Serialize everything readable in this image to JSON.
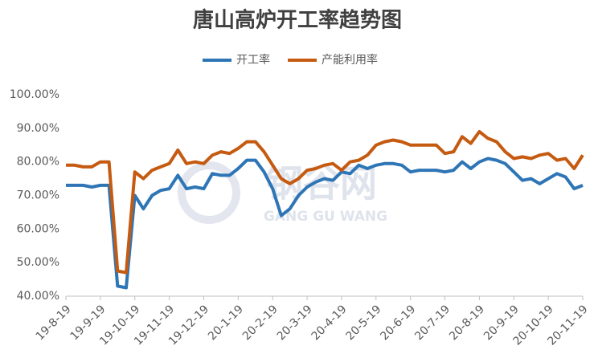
{
  "chart_data": {
    "type": "line",
    "title": "唐山高炉开工率趋势图",
    "watermark": {
      "text": "钢谷网",
      "subtext": "GANG GU WANG"
    },
    "categories": [
      "19-8-19",
      null,
      null,
      null,
      "19-9-19",
      null,
      null,
      null,
      "19-10-19",
      null,
      null,
      null,
      "19-11-19",
      null,
      null,
      null,
      "19-12-19",
      null,
      null,
      null,
      "20-1-19",
      null,
      null,
      null,
      "20-2-19",
      null,
      null,
      null,
      "20-3-19",
      null,
      null,
      null,
      "20-4-19",
      null,
      null,
      null,
      "20-5-19",
      null,
      null,
      null,
      "20-6-19",
      null,
      null,
      null,
      "20-7-19",
      null,
      null,
      null,
      "20-8-19",
      null,
      null,
      null,
      "20-9-19",
      null,
      null,
      null,
      "20-10-19",
      null,
      null,
      null,
      "20-11-19"
    ],
    "series": [
      {
        "name": "开工率",
        "color": "#2e75b6",
        "values": [
          73,
          73,
          73,
          72.5,
          73,
          73,
          43,
          42.5,
          70,
          66,
          70,
          71.5,
          72,
          76,
          72,
          72.5,
          72,
          76.5,
          76,
          76,
          78,
          80.5,
          80.5,
          77,
          72,
          64,
          66,
          70,
          72.5,
          74,
          75,
          74.5,
          77,
          76.5,
          79,
          78,
          79,
          79.5,
          79.5,
          79,
          77,
          77.5,
          77.5,
          77.5,
          77,
          77.5,
          80,
          78,
          80,
          81,
          80.5,
          79.5,
          77,
          74.5,
          75,
          73.5,
          75,
          76.5,
          75.5,
          72,
          73
        ]
      },
      {
        "name": "产能利用率",
        "color": "#c55a11",
        "values": [
          79,
          79,
          78.5,
          78.5,
          80,
          80,
          47.5,
          47,
          77,
          75,
          77.5,
          78.5,
          79.5,
          83.5,
          79.5,
          80,
          79.5,
          82,
          83,
          82.5,
          84,
          86,
          86,
          83,
          79,
          75,
          73.5,
          75,
          77.5,
          78,
          79,
          79.5,
          77.5,
          80,
          80.5,
          82,
          85,
          86,
          86.5,
          86,
          85,
          85,
          85,
          85,
          82.5,
          83,
          87.5,
          85.5,
          89,
          87,
          86,
          83,
          81,
          81.5,
          81,
          82,
          82.5,
          80.5,
          81,
          78,
          82
        ]
      }
    ],
    "ylim": [
      40,
      100
    ],
    "yticks": [
      {
        "value": 40,
        "label": "40.00%"
      },
      {
        "value": 50,
        "label": "50.00%"
      },
      {
        "value": 60,
        "label": "60.00%"
      },
      {
        "value": 70,
        "label": "70.00%"
      },
      {
        "value": 80,
        "label": "80.00%"
      },
      {
        "value": 90,
        "label": "90.00%"
      },
      {
        "value": 100,
        "label": "100.00%"
      }
    ],
    "grid": false,
    "legend": "top"
  }
}
